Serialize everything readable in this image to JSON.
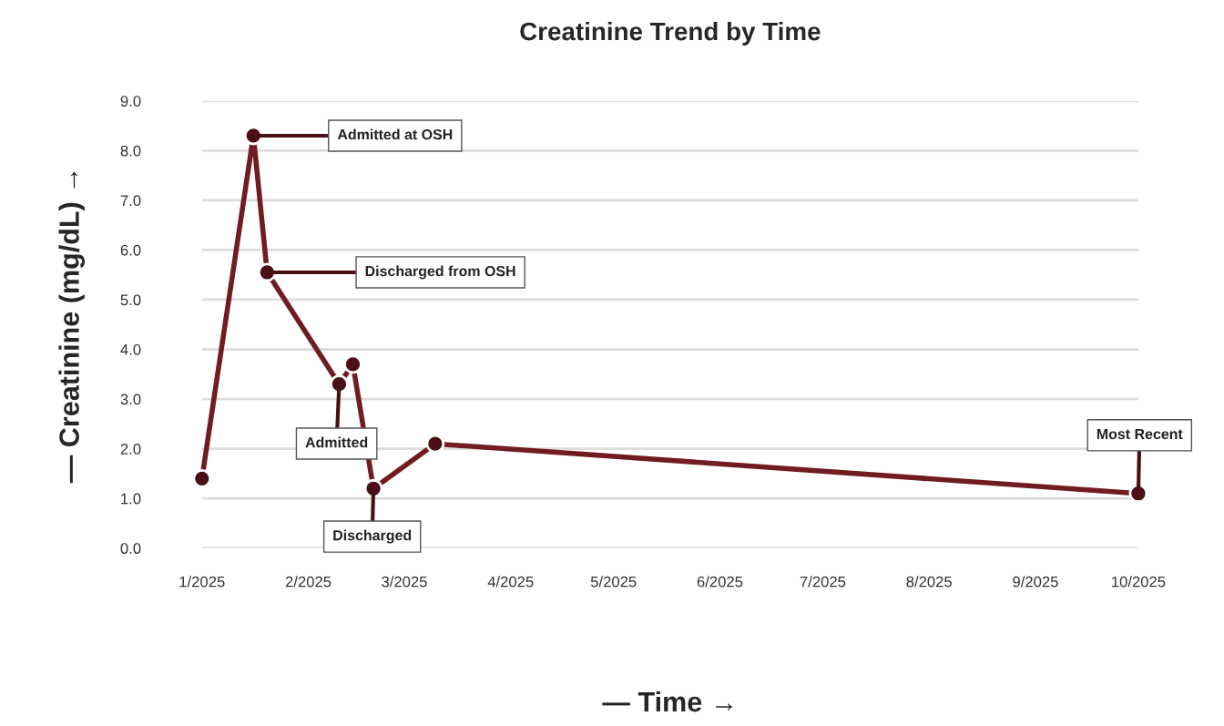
{
  "chart_data": {
    "type": "line",
    "title": "Creatinine Trend by Time",
    "xlabel": "— Time →",
    "ylabel": "— Creatinine (mg/dL) →",
    "x": [
      "2025-01-01",
      "2025-01-16",
      "2025-01-20",
      "2025-02-10",
      "2025-02-14",
      "2025-02-20",
      "2025-03-10",
      "2025-10-01"
    ],
    "series": [
      {
        "color": "#701c20",
        "values": [
          1.4,
          8.3,
          5.55,
          3.3,
          3.7,
          1.2,
          2.1,
          1.1
        ]
      }
    ],
    "annotations": [
      {
        "text": "Admitted at OSH",
        "x": "2025-01-16",
        "y": 8.3
      },
      {
        "text": "Discharged from OSH",
        "x": "2025-01-20",
        "y": 5.55
      },
      {
        "text": "Admitted",
        "x": "2025-02-10",
        "y": 3.3
      },
      {
        "text": "Discharged",
        "x": "2025-02-20",
        "y": 1.2
      },
      {
        "text": "Most Recent",
        "x": "2025-10-01",
        "y": 1.1
      }
    ],
    "xlim": [
      "2025-01",
      "2025-10"
    ],
    "xticks": [
      {
        "value": "2025-01",
        "label": "1/2025"
      },
      {
        "value": "2025-02",
        "label": "2/2025"
      },
      {
        "value": "2025-03",
        "label": "3/2025"
      },
      {
        "value": "2025-04",
        "label": "4/2025"
      },
      {
        "value": "2025-05",
        "label": "5/2025"
      },
      {
        "value": "2025-06",
        "label": "6/2025"
      },
      {
        "value": "2025-07",
        "label": "7/2025"
      },
      {
        "value": "2025-08",
        "label": "8/2025"
      },
      {
        "value": "2025-09",
        "label": "9/2025"
      },
      {
        "value": "2025-10",
        "label": "10/2025"
      }
    ],
    "ylim": [
      0,
      9
    ],
    "yticks": [
      {
        "value": 0,
        "label": "0.0"
      },
      {
        "value": 1,
        "label": "1.0"
      },
      {
        "value": 2,
        "label": "2.0"
      },
      {
        "value": 3,
        "label": "3.0"
      },
      {
        "value": 4,
        "label": "4.0"
      },
      {
        "value": 5,
        "label": "5.0"
      },
      {
        "value": 6,
        "label": "6.0"
      },
      {
        "value": 7,
        "label": "7.0"
      },
      {
        "value": 8,
        "label": "8.0"
      },
      {
        "value": 9,
        "label": "9.0"
      }
    ],
    "grid": "y",
    "marker": "circle",
    "line_style": "solid"
  }
}
